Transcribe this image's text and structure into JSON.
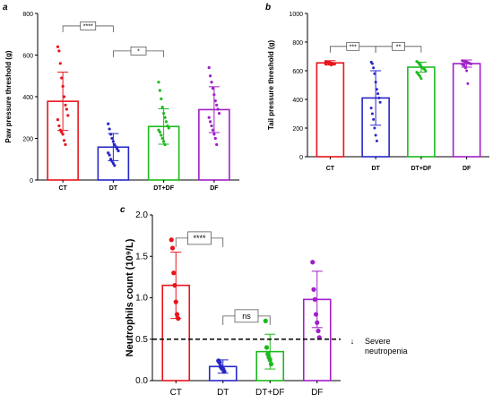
{
  "chart_data": [
    {
      "panel": "a",
      "type": "bar",
      "ylabel": "Paw pressure threshold (g)",
      "ylim": [
        0,
        800
      ],
      "yticks": [
        0,
        200,
        400,
        600,
        800
      ],
      "categories": [
        "CT",
        "DT",
        "DT+DF",
        "DF"
      ],
      "colors": [
        "#e8141c",
        "#2727c8",
        "#1db91d",
        "#a020c8"
      ],
      "values": [
        378,
        158,
        257,
        338
      ],
      "sd": [
        140,
        65,
        85,
        110
      ],
      "points": [
        [
          640,
          620,
          560,
          490,
          450,
          400,
          360,
          340,
          310,
          290,
          260,
          240,
          230,
          220,
          190,
          170
        ],
        [
          270,
          245,
          220,
          200,
          185,
          170,
          160,
          150,
          140,
          130,
          120,
          100,
          90,
          80,
          70
        ],
        [
          470,
          430,
          390,
          350,
          320,
          300,
          280,
          260,
          250,
          240,
          230,
          215,
          200,
          185,
          170
        ],
        [
          540,
          500,
          470,
          440,
          410,
          380,
          360,
          340,
          320,
          300,
          280,
          260,
          240,
          220,
          200,
          170
        ]
      ],
      "comparisons": [
        {
          "from": 0,
          "to": 1,
          "label": "****"
        },
        {
          "from": 1,
          "to": 2,
          "label": "*"
        }
      ]
    },
    {
      "panel": "b",
      "type": "bar",
      "ylabel": "Tail pressure threshold (g)",
      "ylim": [
        0,
        1000
      ],
      "yticks": [
        0,
        200,
        400,
        600,
        800,
        1000
      ],
      "categories": [
        "CT",
        "DT",
        "DT+DF",
        "DF"
      ],
      "colors": [
        "#e8141c",
        "#2727c8",
        "#1db91d",
        "#a020c8"
      ],
      "values": [
        655,
        410,
        625,
        650
      ],
      "sd": [
        15,
        190,
        35,
        25
      ],
      "points": [
        [
          665,
          662,
          660,
          658,
          656,
          654,
          652,
          650,
          648,
          646,
          660,
          655,
          650,
          645,
          640
        ],
        [
          660,
          650,
          620,
          580,
          520,
          470,
          440,
          410,
          380,
          340,
          300,
          260,
          200,
          150,
          110
        ],
        [
          665,
          660,
          650,
          640,
          630,
          620,
          615,
          610,
          600,
          590,
          580,
          570,
          560,
          545
        ],
        [
          670,
          668,
          665,
          662,
          660,
          658,
          655,
          650,
          648,
          645,
          640,
          635,
          620,
          600,
          510
        ]
      ],
      "comparisons": [
        {
          "from": 0,
          "to": 1,
          "label": "***"
        },
        {
          "from": 1,
          "to": 2,
          "label": "**"
        }
      ]
    },
    {
      "panel": "c",
      "type": "bar",
      "ylabel": "Neutrophils count (10⁹/L)",
      "ylim": [
        0,
        2.0
      ],
      "yticks": [
        "0.0",
        "0.5",
        "1.0",
        "1.5",
        "2.0"
      ],
      "categories": [
        "CT",
        "DT",
        "DT+DF",
        "DF"
      ],
      "colors": [
        "#e8141c",
        "#2727c8",
        "#1db91d",
        "#a020c8"
      ],
      "values": [
        1.15,
        0.17,
        0.35,
        0.98
      ],
      "sd": [
        0.4,
        0.08,
        0.21,
        0.34
      ],
      "points": [
        [
          1.7,
          1.6,
          1.3,
          1.15,
          0.95,
          0.8,
          0.75
        ],
        [
          0.24,
          0.22,
          0.17,
          0.15,
          0.14,
          0.11
        ],
        [
          0.72,
          0.4,
          0.32,
          0.28,
          0.25,
          0.2
        ],
        [
          1.43,
          1.1,
          0.98,
          0.8,
          0.7,
          0.6,
          0.52
        ]
      ],
      "comparisons": [
        {
          "from": 0,
          "to": 1,
          "label": "****"
        },
        {
          "from": 1,
          "to": 2,
          "label": "ns"
        }
      ],
      "threshold": {
        "value": 0.5,
        "label_line1": "Severe",
        "label_line2": "neutropenia",
        "arrow": "↓"
      }
    }
  ]
}
